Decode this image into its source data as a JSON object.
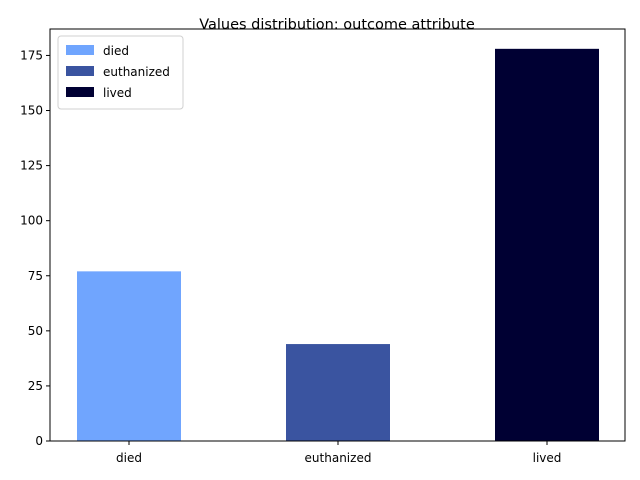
{
  "chart_data": {
    "type": "bar",
    "title": "Values distribution: outcome attribute",
    "xlabel": "",
    "ylabel": "",
    "categories": [
      "died",
      "euthanized",
      "lived"
    ],
    "values": [
      77,
      44,
      178
    ],
    "colors": [
      "#70a5fe",
      "#3a54a0",
      "#000033"
    ],
    "ylim": [
      0,
      187
    ],
    "yticks": [
      0,
      25,
      50,
      75,
      100,
      125,
      150,
      175
    ],
    "grid": false,
    "legend": {
      "placement": "top-left",
      "entries": [
        "died",
        "euthanized",
        "lived"
      ]
    }
  }
}
